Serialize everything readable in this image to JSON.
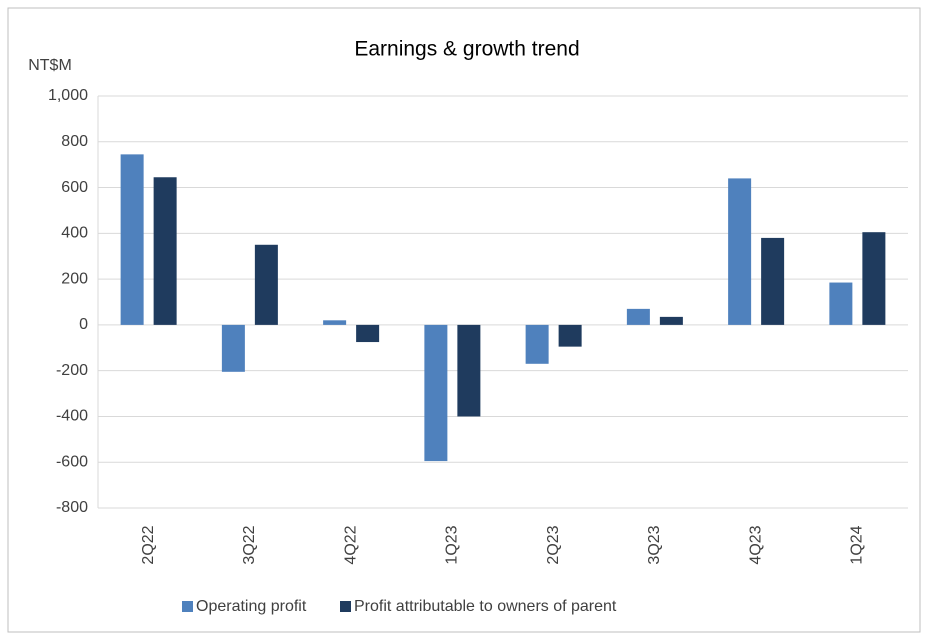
{
  "chart_data": {
    "type": "bar",
    "title": "Earnings & growth trend",
    "y_label": "NT$M",
    "categories": [
      "2Q22",
      "3Q22",
      "4Q22",
      "1Q23",
      "2Q23",
      "3Q23",
      "4Q23",
      "1Q24"
    ],
    "series": [
      {
        "name": "Operating profit",
        "color": "#4f81bd",
        "values": [
          745,
          -205,
          20,
          -595,
          -170,
          70,
          640,
          185
        ]
      },
      {
        "name": "Profit attributable to owners of parent",
        "color": "#1f3b5e",
        "values": [
          645,
          350,
          -75,
          -400,
          -95,
          35,
          380,
          405
        ]
      }
    ],
    "ylim": [
      -800,
      1000
    ],
    "yticks": [
      -800,
      -600,
      -400,
      -200,
      0,
      200,
      400,
      600,
      800,
      {
        "value": 1000,
        "label": "1,000"
      }
    ],
    "grid": true,
    "legend": "bottom"
  }
}
